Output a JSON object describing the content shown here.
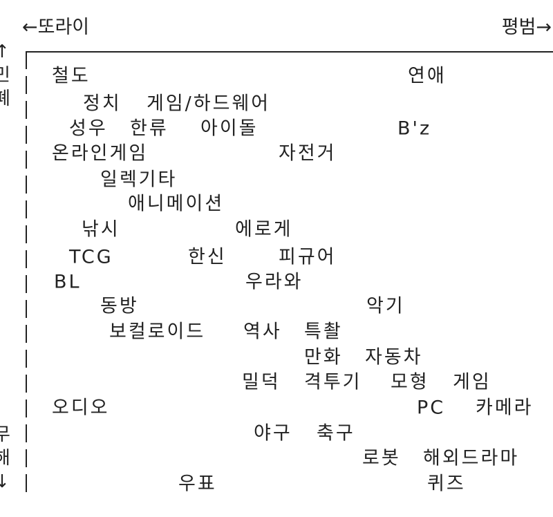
{
  "axes": {
    "left_label": "←또라이",
    "right_label": "평범→",
    "top_label": "↑민폐",
    "bottom_label": "무해↓"
  },
  "items": [
    {
      "text": "철도"
    },
    {
      "text": "연애"
    },
    {
      "text": "정치"
    },
    {
      "text": "게임/하드웨어"
    },
    {
      "text": "성우"
    },
    {
      "text": "한류"
    },
    {
      "text": "아이돌"
    },
    {
      "text": "B'z"
    },
    {
      "text": "온라인게임"
    },
    {
      "text": "자전거"
    },
    {
      "text": "일렉기타"
    },
    {
      "text": "애니메이션"
    },
    {
      "text": "낚시"
    },
    {
      "text": "에로게"
    },
    {
      "text": "TCG"
    },
    {
      "text": "한신"
    },
    {
      "text": "피규어"
    },
    {
      "text": "BL"
    },
    {
      "text": "우라와"
    },
    {
      "text": "동방"
    },
    {
      "text": "악기"
    },
    {
      "text": "보컬로이드"
    },
    {
      "text": "역사"
    },
    {
      "text": "특촬"
    },
    {
      "text": "만화"
    },
    {
      "text": "자동차"
    },
    {
      "text": "밀덕"
    },
    {
      "text": "격투기"
    },
    {
      "text": "모형"
    },
    {
      "text": "게임"
    },
    {
      "text": "오디오"
    },
    {
      "text": "PC"
    },
    {
      "text": "카메라"
    },
    {
      "text": "야구"
    },
    {
      "text": "축구"
    },
    {
      "text": "로봇"
    },
    {
      "text": "해외드라마"
    },
    {
      "text": "우표"
    },
    {
      "text": "퀴즈"
    }
  ]
}
